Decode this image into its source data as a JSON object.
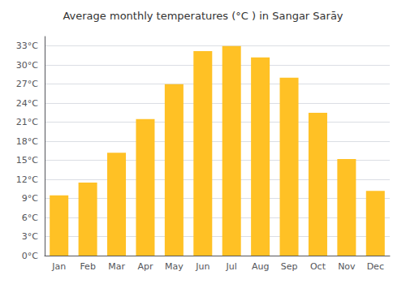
{
  "chart_data": {
    "type": "bar",
    "title": "Average monthly temperatures (°C ) in Sangar Sarāy",
    "categories": [
      "Jan",
      "Feb",
      "Mar",
      "Apr",
      "May",
      "Jun",
      "Jul",
      "Aug",
      "Sep",
      "Oct",
      "Nov",
      "Dec"
    ],
    "values": [
      9.5,
      11.5,
      16.2,
      21.5,
      27.0,
      32.2,
      33.0,
      31.2,
      28.0,
      22.5,
      15.2,
      10.2
    ],
    "color": "#FFC125",
    "ylim": [
      0,
      34.5
    ],
    "yticks": [
      {
        "value": 0,
        "label": "0°C"
      },
      {
        "value": 3,
        "label": "3°C"
      },
      {
        "value": 6,
        "label": "6°C"
      },
      {
        "value": 9,
        "label": "9°C"
      },
      {
        "value": 12,
        "label": "12°C"
      },
      {
        "value": 15,
        "label": "15°C"
      },
      {
        "value": 18,
        "label": "18°C"
      },
      {
        "value": 21,
        "label": "21°C"
      },
      {
        "value": 24,
        "label": "24°C"
      },
      {
        "value": 27,
        "label": "27°C"
      },
      {
        "value": 30,
        "label": "30°C"
      },
      {
        "value": 33,
        "label": "33°C"
      }
    ],
    "grid": true
  }
}
